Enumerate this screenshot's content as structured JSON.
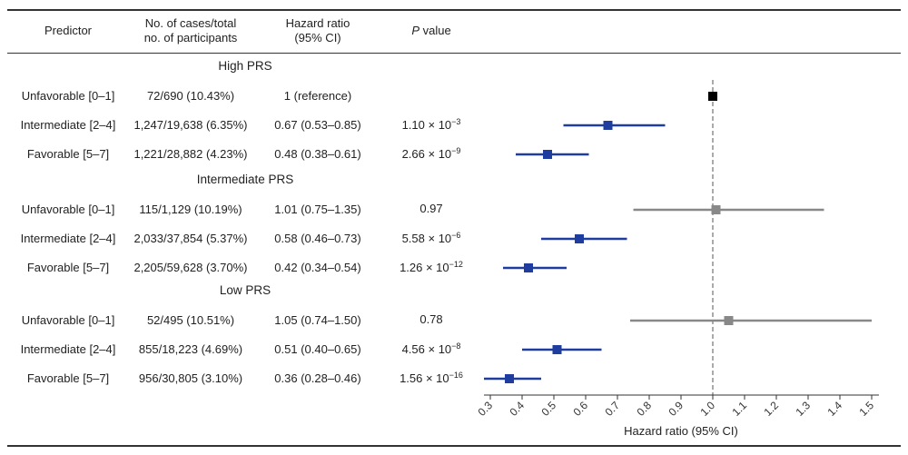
{
  "header": {
    "predictor": "Predictor",
    "cases_line1": "No. of cases/total",
    "cases_line2": "no. of participants",
    "hr_line1": "Hazard ratio",
    "hr_line2": "(95% CI)",
    "p_label_italic": "P",
    "p_label_rest": " value"
  },
  "colors": {
    "significant": "#1f3d9e",
    "nonsignificant": "#888888",
    "reference": "#000000"
  },
  "chart_data": {
    "type": "forest",
    "xlabel": "Hazard ratio (95% CI)",
    "xlim": [
      0.3,
      1.5
    ],
    "ticks": [
      "0.3",
      "0.4",
      "0.5",
      "0.6",
      "0.7",
      "0.8",
      "0.9",
      "1.0",
      "1.1",
      "1.2",
      "1.3",
      "1.4",
      "1.5"
    ],
    "reference_line": 1.0,
    "groups": [
      {
        "name": "High PRS",
        "rows": [
          {
            "predictor": "Unfavorable [0–1]",
            "cases": "72/690 (10.43%)",
            "hr_text": "1 (reference)",
            "p_base": "",
            "p_exp": "",
            "hr": 1.0,
            "lo": 1.0,
            "hi": 1.0,
            "kind": "reference"
          },
          {
            "predictor": "Intermediate [2–4]",
            "cases": "1,247/19,638 (6.35%)",
            "hr_text": "0.67 (0.53–0.85)",
            "p_base": "1.10 × 10",
            "p_exp": "−3",
            "hr": 0.67,
            "lo": 0.53,
            "hi": 0.85,
            "kind": "significant"
          },
          {
            "predictor": "Favorable [5–7]",
            "cases": "1,221/28,882 (4.23%)",
            "hr_text": "0.48 (0.38–0.61)",
            "p_base": "2.66 × 10",
            "p_exp": "−9",
            "hr": 0.48,
            "lo": 0.38,
            "hi": 0.61,
            "kind": "significant"
          }
        ]
      },
      {
        "name": "Intermediate PRS",
        "rows": [
          {
            "predictor": "Unfavorable [0–1]",
            "cases": "115/1,129 (10.19%)",
            "hr_text": "1.01 (0.75–1.35)",
            "p_base": "0.97",
            "p_exp": "",
            "hr": 1.01,
            "lo": 0.75,
            "hi": 1.35,
            "kind": "nonsignificant"
          },
          {
            "predictor": "Intermediate [2–4]",
            "cases": "2,033/37,854 (5.37%)",
            "hr_text": "0.58 (0.46–0.73)",
            "p_base": "5.58 × 10",
            "p_exp": "−6",
            "hr": 0.58,
            "lo": 0.46,
            "hi": 0.73,
            "kind": "significant"
          },
          {
            "predictor": "Favorable [5–7]",
            "cases": "2,205/59,628 (3.70%)",
            "hr_text": "0.42 (0.34–0.54)",
            "p_base": "1.26 × 10",
            "p_exp": "−12",
            "hr": 0.42,
            "lo": 0.34,
            "hi": 0.54,
            "kind": "significant"
          }
        ]
      },
      {
        "name": "Low PRS",
        "rows": [
          {
            "predictor": "Unfavorable [0–1]",
            "cases": "52/495 (10.51%)",
            "hr_text": "1.05 (0.74–1.50)",
            "p_base": "0.78",
            "p_exp": "",
            "hr": 1.05,
            "lo": 0.74,
            "hi": 1.5,
            "kind": "nonsignificant"
          },
          {
            "predictor": "Intermediate [2–4]",
            "cases": "855/18,223 (4.69%)",
            "hr_text": "0.51 (0.40–0.65)",
            "p_base": "4.56 × 10",
            "p_exp": "−8",
            "hr": 0.51,
            "lo": 0.4,
            "hi": 0.65,
            "kind": "significant"
          },
          {
            "predictor": "Favorable [5–7]",
            "cases": "956/30,805 (3.10%)",
            "hr_text": "0.36 (0.28–0.46)",
            "p_base": "1.56 × 10",
            "p_exp": "−16",
            "hr": 0.36,
            "lo": 0.28,
            "hi": 0.46,
            "kind": "significant"
          }
        ]
      }
    ]
  }
}
